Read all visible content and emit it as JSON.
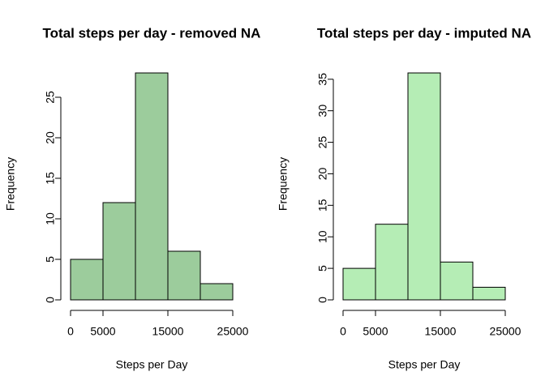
{
  "chart_data": [
    {
      "type": "histogram",
      "title": "Total steps per day - removed NA",
      "x_label": "Steps per Day",
      "y_label": "Frequency",
      "bins": [
        0,
        5000,
        10000,
        15000,
        20000,
        25000
      ],
      "values": [
        5,
        12,
        28,
        6,
        2
      ],
      "color": "#9ccc9c",
      "xlim": [
        0,
        25000
      ],
      "xticks": [
        0,
        5000,
        15000,
        25000
      ],
      "ylim": [
        0,
        28
      ],
      "yticks": [
        0,
        5,
        10,
        15,
        20,
        25
      ]
    },
    {
      "type": "histogram",
      "title": "Total steps per day - imputed NA",
      "x_label": "Steps per Day",
      "y_label": "Frequency",
      "bins": [
        0,
        5000,
        10000,
        15000,
        20000,
        25000
      ],
      "values": [
        5,
        12,
        36,
        6,
        2
      ],
      "color": "#b5edb5",
      "xlim": [
        0,
        25000
      ],
      "xticks": [
        0,
        5000,
        15000,
        25000
      ],
      "ylim": [
        0,
        36
      ],
      "yticks": [
        0,
        5,
        10,
        15,
        20,
        25,
        30,
        35
      ]
    }
  ]
}
